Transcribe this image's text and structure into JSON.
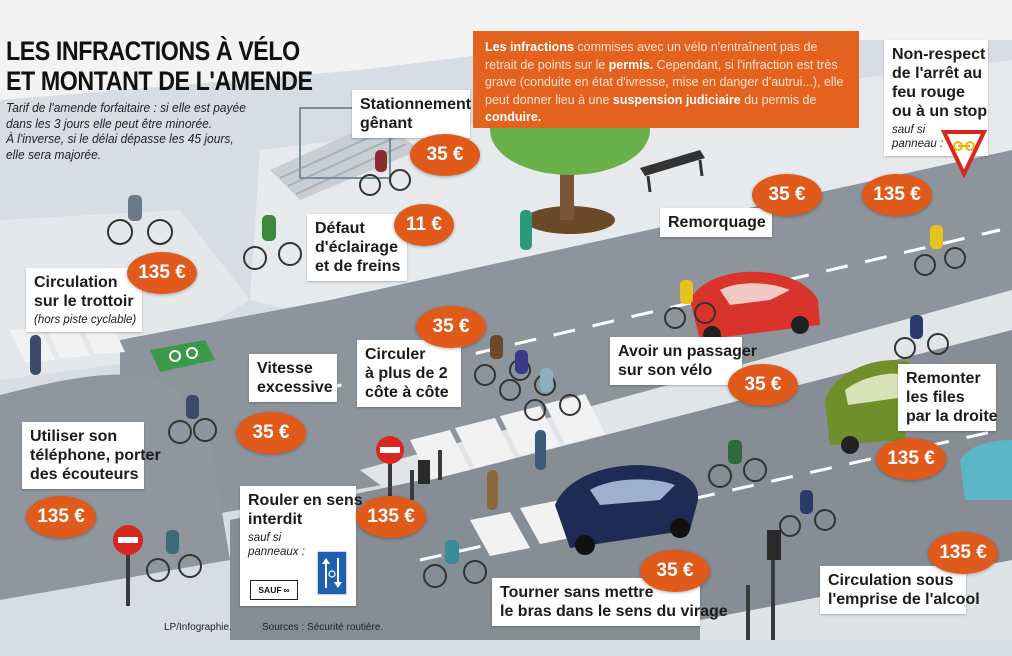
{
  "title": {
    "line1": "LES INFRACTIONS À VÉLO",
    "line2": "ET MONTANT DE L'AMENDE"
  },
  "intro": {
    "line1": "Tarif de l'amende forfaitaire : si elle est payée",
    "line2": "dans les 3 jours elle peut être minorée.",
    "line3": "À l'inverse, si le délai dépasse les 45 jours,",
    "line4": "elle sera majorée."
  },
  "notice": {
    "part1": "Les infractions",
    "part2": " commises avec un vélo n'entraînent pas de retrait de points sur le ",
    "part3": "permis.",
    "part4": " Cependant, si l'infraction est très grave (conduite en état d'ivresse, mise en danger d'autrui...), elle peut donner lieu à une ",
    "part5": "suspension judiciaire",
    "part6": " du permis de ",
    "part7": "conduire."
  },
  "infractions": {
    "stationnement": {
      "l1": "Stationnement",
      "l2": "gênant",
      "fine": "35 €"
    },
    "eclairage": {
      "l1": "Défaut",
      "l2": "d'éclairage",
      "l3": "et de freins",
      "fine": "11 €"
    },
    "trottoir": {
      "l1": "Circulation",
      "l2": "sur le trottoir",
      "note": "(hors piste cyclable)",
      "fine": "135 €"
    },
    "vitesse": {
      "l1": "Vitesse",
      "l2": "excessive",
      "fine": "35 €"
    },
    "cote": {
      "l1": "Circuler",
      "l2": "à plus de 2",
      "l3": "côte à côte",
      "fine": "35 €"
    },
    "remorquage": {
      "l1": "Remorquage",
      "fine": "35 €"
    },
    "feu": {
      "l1": "Non-respect",
      "l2": "de l'arrêt au",
      "l3": "feu rouge",
      "l4": "ou à un stop",
      "note1": "sauf si",
      "note2": "panneau :",
      "fine": "135 €"
    },
    "passager": {
      "l1": "Avoir un passager",
      "l2": "sur son vélo",
      "fine": "35 €"
    },
    "files": {
      "l1": "Remonter",
      "l2": "les files",
      "l3": "par la droite",
      "fine": "135 €"
    },
    "telephone": {
      "l1": "Utiliser son",
      "l2": "téléphone, porter",
      "l3": "des écouteurs",
      "fine": "135 €"
    },
    "sens": {
      "l1": "Rouler en sens",
      "l2": "interdit",
      "note1": "sauf si",
      "note2": "panneaux :",
      "sign": "SAUF",
      "fine": "135 €"
    },
    "bras": {
      "l1": "Tourner sans mettre",
      "l2": "le bras dans le sens du virage",
      "fine": "35 €"
    },
    "alcool": {
      "l1": "Circulation sous",
      "l2": "l'emprise de l'alcool",
      "fine": "135 €"
    }
  },
  "credits": {
    "author": "LP/Infographie.",
    "sources": "Sources : Sécurité routière."
  },
  "colors": {
    "accent_orange": "#e05a1c",
    "notice_orange": "#e4621f",
    "road": "#8d949b",
    "sidewalk": "#dfe3e6",
    "car_red": "#d9342b",
    "car_blue": "#1d2b55",
    "car_green": "#6f8f2c"
  }
}
